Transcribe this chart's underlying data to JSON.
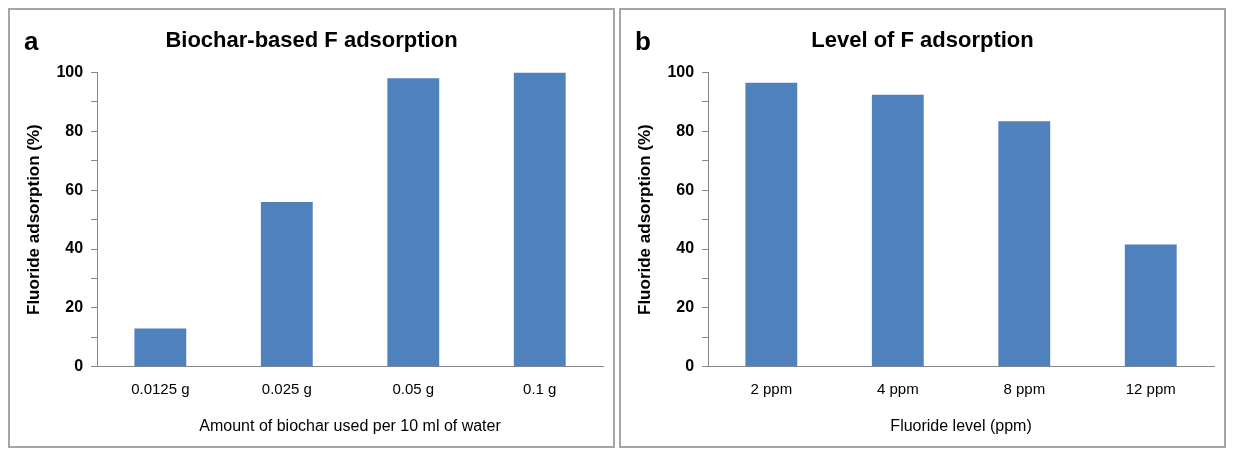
{
  "chart_data": [
    {
      "type": "bar",
      "title": "Biochar-based F adsorption",
      "annotations": [
        "a"
      ],
      "xlabel": "Amount of biochar used per 10 ml of water",
      "ylabel": "Fluoride adsorption (%)",
      "categories": [
        "0.0125 g",
        "0.025 g",
        "0.05 g",
        "0.1 g"
      ],
      "values": [
        13,
        56,
        98,
        100
      ],
      "color": "#4f81bd",
      "ylim": [
        0,
        100
      ],
      "yticks": [
        0,
        {
          "value": 10,
          "label": null
        },
        20,
        {
          "value": 30,
          "label": null
        },
        40,
        {
          "value": 50,
          "label": null
        },
        60,
        {
          "value": 70,
          "label": null
        },
        80,
        {
          "value": 90,
          "label": null
        },
        100
      ],
      "grid": false,
      "legend": false
    },
    {
      "type": "bar",
      "title": "Level of F adsorption",
      "annotations": [
        "b"
      ],
      "xlabel": "Fluoride level (ppm)",
      "ylabel": "Fluoride adsorption (%)",
      "categories": [
        "2 ppm",
        "4 ppm",
        "8 ppm",
        "12 ppm"
      ],
      "values": [
        96.5,
        92.4,
        83.4,
        41.5
      ],
      "color": "#4f81bd",
      "ylim": [
        0,
        100
      ],
      "yticks": [
        0,
        {
          "value": 10,
          "label": null
        },
        20,
        {
          "value": 30,
          "label": null
        },
        40,
        {
          "value": 50,
          "label": null
        },
        60,
        {
          "value": 70,
          "label": null
        },
        80,
        {
          "value": 90,
          "label": null
        },
        100
      ],
      "grid": false,
      "legend": false
    }
  ]
}
